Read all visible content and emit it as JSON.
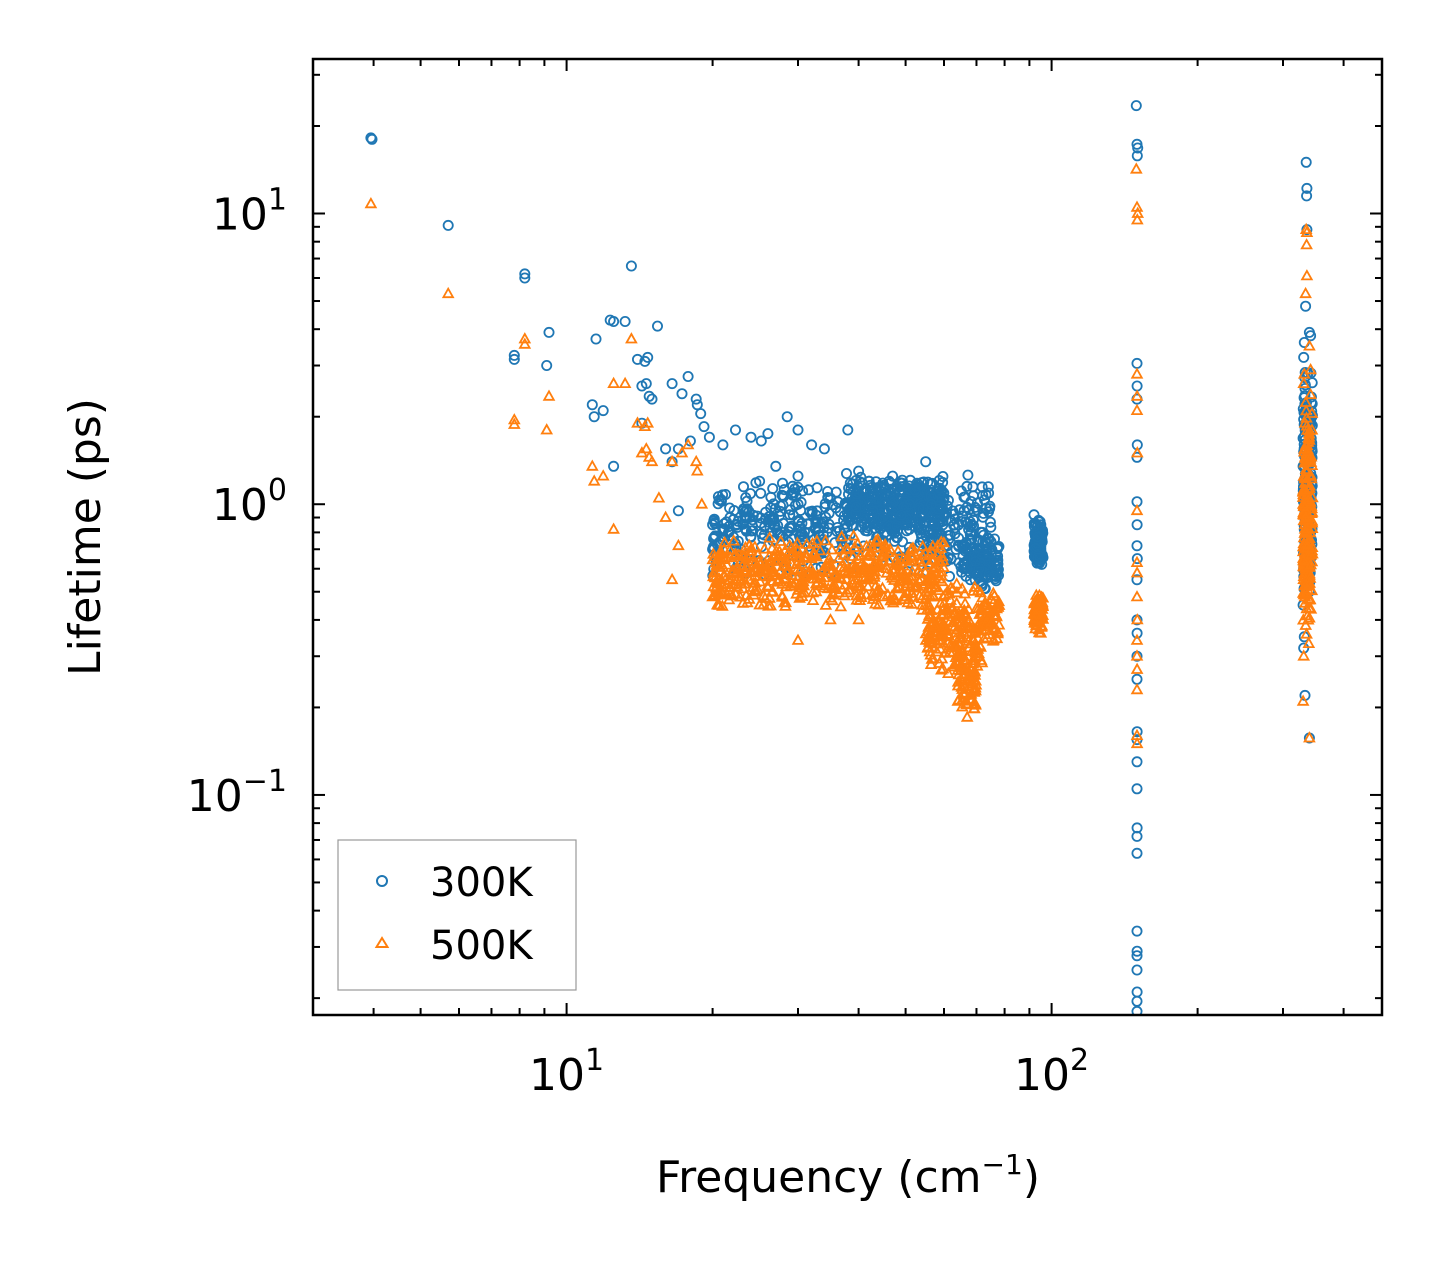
{
  "chart_data": {
    "type": "scatter",
    "xscale": "log",
    "yscale": "log",
    "xlabel": "Frequency (cm",
    "xlabel_sup": "−1",
    "xlabel_end": ")",
    "ylabel": "Lifetime (ps)",
    "xlim": [
      3.0,
      480
    ],
    "ylim": [
      0.0175,
      34
    ],
    "legend_position": "lower-left",
    "x_ticks": [
      {
        "value": 10,
        "base": "10",
        "exp": "1"
      },
      {
        "value": 100,
        "base": "10",
        "exp": "2"
      }
    ],
    "y_ticks": [
      {
        "value": 0.1,
        "base": "10",
        "exp": "−1"
      },
      {
        "value": 1,
        "base": "10",
        "exp": "0"
      },
      {
        "value": 10,
        "base": "10",
        "exp": "1"
      }
    ],
    "series": [
      {
        "name": "300K",
        "color": "#1f77b4",
        "marker": "circle",
        "points": [
          [
            3.95,
            18.2
          ],
          [
            3.97,
            18.0
          ],
          [
            5.7,
            9.1
          ],
          [
            8.2,
            6.2
          ],
          [
            8.2,
            6.0
          ],
          [
            7.8,
            3.25
          ],
          [
            7.8,
            3.15
          ],
          [
            9.2,
            3.9
          ],
          [
            9.1,
            3.0
          ],
          [
            11.5,
            3.7
          ],
          [
            12.3,
            4.3
          ],
          [
            12.5,
            4.25
          ],
          [
            13.2,
            4.25
          ],
          [
            13.6,
            6.6
          ],
          [
            14.0,
            3.15
          ],
          [
            14.5,
            3.1
          ],
          [
            14.7,
            3.2
          ],
          [
            15.4,
            4.1
          ],
          [
            11.3,
            2.2
          ],
          [
            11.4,
            2.0
          ],
          [
            11.9,
            2.1
          ],
          [
            14.6,
            2.6
          ],
          [
            14.3,
            2.55
          ],
          [
            14.8,
            2.35
          ],
          [
            15.0,
            2.3
          ],
          [
            16.5,
            2.6
          ],
          [
            17.3,
            2.4
          ],
          [
            17.8,
            2.75
          ],
          [
            18.5,
            2.3
          ],
          [
            18.6,
            2.2
          ],
          [
            18.9,
            2.05
          ],
          [
            12.5,
            1.35
          ],
          [
            14.3,
            1.9
          ],
          [
            16.0,
            1.55
          ],
          [
            16.5,
            1.4
          ],
          [
            17.0,
            1.55
          ],
          [
            18.0,
            1.65
          ],
          [
            19.2,
            1.85
          ],
          [
            19.7,
            1.7
          ],
          [
            21.0,
            1.6
          ],
          [
            22.3,
            1.8
          ],
          [
            24.0,
            1.7
          ],
          [
            25.2,
            1.65
          ],
          [
            26.0,
            1.75
          ],
          [
            28.5,
            2.0
          ],
          [
            30.0,
            1.8
          ],
          [
            32.0,
            1.6
          ],
          [
            34.0,
            1.55
          ],
          [
            38.0,
            1.8
          ],
          [
            40.0,
            1.3
          ],
          [
            42.0,
            1.2
          ],
          [
            44.0,
            1.0
          ],
          [
            47.0,
            1.25
          ],
          [
            55.0,
            1.4
          ],
          [
            60.0,
            1.05
          ],
          [
            63.0,
            0.85
          ],
          [
            66.0,
            0.95
          ],
          [
            17.0,
            0.95
          ],
          [
            20.0,
            0.85
          ],
          [
            20.0,
            0.7
          ],
          [
            21.0,
            0.75
          ],
          [
            25.0,
            1.2
          ],
          [
            27.0,
            1.35
          ],
          [
            30.0,
            1.25
          ],
          [
            35.0,
            1.05
          ],
          [
            50.0,
            0.9
          ],
          [
            58.0,
            0.8
          ],
          [
            62.0,
            0.65
          ],
          [
            66.0,
            0.6
          ],
          [
            68.0,
            0.55
          ],
          [
            70.0,
            0.7
          ],
          [
            72.0,
            0.8
          ],
          [
            92.0,
            0.92
          ],
          [
            94.0,
            0.88
          ],
          [
            95.0,
            0.85
          ],
          [
            149.5,
            23.5
          ],
          [
            150.0,
            17.3
          ],
          [
            150.5,
            16.8
          ],
          [
            150.2,
            15.8
          ],
          [
            150.0,
            3.05
          ],
          [
            150.1,
            2.55
          ],
          [
            150.0,
            2.3
          ],
          [
            150.2,
            1.6
          ],
          [
            150.0,
            1.45
          ],
          [
            150.0,
            1.02
          ],
          [
            150.1,
            0.85
          ],
          [
            150.0,
            0.72
          ],
          [
            150.2,
            0.65
          ],
          [
            150.0,
            0.55
          ],
          [
            150.0,
            0.4
          ],
          [
            150.1,
            0.36
          ],
          [
            150.0,
            0.3
          ],
          [
            150.0,
            0.25
          ],
          [
            150.1,
            0.165
          ],
          [
            150.0,
            0.155
          ],
          [
            150.0,
            0.13
          ],
          [
            150.0,
            0.105
          ],
          [
            150.1,
            0.077
          ],
          [
            150.0,
            0.072
          ],
          [
            150.0,
            0.063
          ],
          [
            150.0,
            0.034
          ],
          [
            150.1,
            0.029
          ],
          [
            150.0,
            0.028
          ],
          [
            150.0,
            0.025
          ],
          [
            150.1,
            0.021
          ],
          [
            150.0,
            0.0195
          ],
          [
            150.0,
            0.018
          ],
          [
            335.0,
            15.0
          ],
          [
            336.0,
            12.2
          ],
          [
            335.5,
            11.5
          ],
          [
            336.0,
            8.8
          ],
          [
            334.0,
            4.8
          ],
          [
            340.0,
            3.9
          ],
          [
            342.0,
            3.8
          ],
          [
            332.0,
            3.6
          ],
          [
            331.0,
            3.2
          ],
          [
            333.0,
            2.5
          ],
          [
            330.0,
            1.35
          ],
          [
            334.0,
            1.0
          ],
          [
            333.0,
            0.85
          ],
          [
            331.0,
            0.62
          ],
          [
            330.0,
            0.45
          ],
          [
            332.0,
            0.35
          ],
          [
            331.0,
            0.32
          ],
          [
            333.0,
            0.22
          ],
          [
            340.0,
            0.157
          ]
        ],
        "clusters": [
          {
            "x": [
              20,
              75
            ],
            "y": [
              0.55,
              1.3
            ],
            "count": 520
          },
          {
            "x": [
              38,
              60
            ],
            "y": [
              0.8,
              1.25
            ],
            "count": 320
          },
          {
            "x": [
              65,
              78
            ],
            "y": [
              0.5,
              0.78
            ],
            "count": 120
          },
          {
            "x": [
              92,
              96
            ],
            "y": [
              0.6,
              0.9
            ],
            "count": 110
          },
          {
            "x": [
              330,
              345
            ],
            "y": [
              0.45,
              3.2
            ],
            "count": 180
          }
        ]
      },
      {
        "name": "500K",
        "color": "#ff7f0e",
        "marker": "triangle",
        "points": [
          [
            3.95,
            10.8
          ],
          [
            5.7,
            5.3
          ],
          [
            8.2,
            3.7
          ],
          [
            8.2,
            3.55
          ],
          [
            7.8,
            1.95
          ],
          [
            7.8,
            1.88
          ],
          [
            9.2,
            2.35
          ],
          [
            9.1,
            1.8
          ],
          [
            12.5,
            2.6
          ],
          [
            13.2,
            2.6
          ],
          [
            13.6,
            3.7
          ],
          [
            14.0,
            1.9
          ],
          [
            14.5,
            1.85
          ],
          [
            14.7,
            1.9
          ],
          [
            11.3,
            1.35
          ],
          [
            11.4,
            1.2
          ],
          [
            11.9,
            1.25
          ],
          [
            14.6,
            1.55
          ],
          [
            14.3,
            1.5
          ],
          [
            14.8,
            1.45
          ],
          [
            15.0,
            1.4
          ],
          [
            16.5,
            1.4
          ],
          [
            17.3,
            1.5
          ],
          [
            17.8,
            1.6
          ],
          [
            18.5,
            1.4
          ],
          [
            18.6,
            1.3
          ],
          [
            12.5,
            0.82
          ],
          [
            15.5,
            1.05
          ],
          [
            16.0,
            0.9
          ],
          [
            16.5,
            0.55
          ],
          [
            17.0,
            0.72
          ],
          [
            19.0,
            1.0
          ],
          [
            20.0,
            0.48
          ],
          [
            20.5,
            0.45
          ],
          [
            25.0,
            0.45
          ],
          [
            30.0,
            0.34
          ],
          [
            35.0,
            0.4
          ],
          [
            40.0,
            0.4
          ],
          [
            44.0,
            0.45
          ],
          [
            50.0,
            0.48
          ],
          [
            55.0,
            0.5
          ],
          [
            60.0,
            0.35
          ],
          [
            63.0,
            0.28
          ],
          [
            65.0,
            0.25
          ],
          [
            66.0,
            0.22
          ],
          [
            67.0,
            0.185
          ],
          [
            68.0,
            0.22
          ],
          [
            70.0,
            0.32
          ],
          [
            72.0,
            0.42
          ],
          [
            75.0,
            0.47
          ],
          [
            92.0,
            0.42
          ],
          [
            94.0,
            0.39
          ],
          [
            95.0,
            0.36
          ],
          [
            149.5,
            14.2
          ],
          [
            150.0,
            10.5
          ],
          [
            150.5,
            10.0
          ],
          [
            150.2,
            9.5
          ],
          [
            150.0,
            2.8
          ],
          [
            150.1,
            2.35
          ],
          [
            150.0,
            2.1
          ],
          [
            150.2,
            1.5
          ],
          [
            150.0,
            0.95
          ],
          [
            150.0,
            0.63
          ],
          [
            150.1,
            0.58
          ],
          [
            150.0,
            0.48
          ],
          [
            150.2,
            0.4
          ],
          [
            150.0,
            0.34
          ],
          [
            150.0,
            0.3
          ],
          [
            150.1,
            0.27
          ],
          [
            150.0,
            0.23
          ],
          [
            150.0,
            0.16
          ],
          [
            150.1,
            0.15
          ],
          [
            335.0,
            8.8
          ],
          [
            336.0,
            8.6
          ],
          [
            335.5,
            7.8
          ],
          [
            336.0,
            6.1
          ],
          [
            334.0,
            5.3
          ],
          [
            340.0,
            3.5
          ],
          [
            342.0,
            2.9
          ],
          [
            332.0,
            2.8
          ],
          [
            331.0,
            2.6
          ],
          [
            333.0,
            1.9
          ],
          [
            330.0,
            1.1
          ],
          [
            334.0,
            0.7
          ],
          [
            333.0,
            0.5
          ],
          [
            331.0,
            0.3
          ],
          [
            330.0,
            0.21
          ],
          [
            340.0,
            0.157
          ]
        ],
        "clusters": [
          {
            "x": [
              20,
              60
            ],
            "y": [
              0.42,
              0.8
            ],
            "count": 520
          },
          {
            "x": [
              55,
              72
            ],
            "y": [
              0.25,
              0.55
            ],
            "count": 200
          },
          {
            "x": [
              64,
              70
            ],
            "y": [
              0.19,
              0.35
            ],
            "count": 70
          },
          {
            "x": [
              72,
              78
            ],
            "y": [
              0.32,
              0.5
            ],
            "count": 50
          },
          {
            "x": [
              92,
              96
            ],
            "y": [
              0.36,
              0.5
            ],
            "count": 90
          },
          {
            "x": [
              330,
              345
            ],
            "y": [
              0.3,
              2.5
            ],
            "count": 180
          }
        ]
      }
    ]
  }
}
